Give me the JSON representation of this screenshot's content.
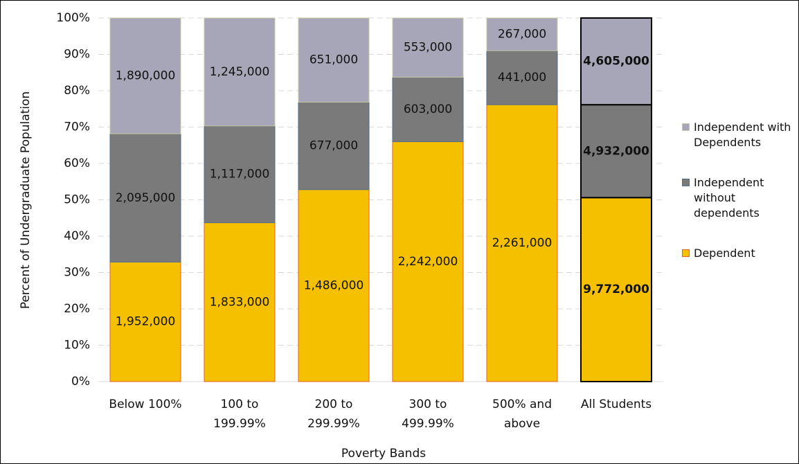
{
  "chart_data": {
    "type": "bar",
    "stacking": "percent",
    "x_label": "Poverty Bands",
    "y_label": "Percent of Undergraduate Population",
    "categories": [
      "Below 100%",
      "100 to\n199.99%",
      "200 to\n299.99%",
      "300 to\n499.99%",
      "500% and\nabove",
      "All Students"
    ],
    "series": [
      {
        "name": "Dependent",
        "color": "#f5c000",
        "edge": "#e0602a",
        "values": [
          1952000,
          1833000,
          1486000,
          2242000,
          2261000,
          9772000
        ],
        "value_labels": [
          "1,952,000",
          "1,833,000",
          "1,486,000",
          "2,242,000",
          "2,261,000",
          "9,772,000"
        ]
      },
      {
        "name": "Independent without dependents",
        "color": "#7a7a7a",
        "edge": "#4f6f8f",
        "values": [
          2095000,
          1117000,
          677000,
          603000,
          441000,
          4932000
        ],
        "value_labels": [
          "2,095,000",
          "1,117,000",
          "677,000",
          "603,000",
          "441,000",
          "4,932,000"
        ]
      },
      {
        "name": "Independent with Dependents",
        "color": "#a6a6b8",
        "edge": "#c9c9a4",
        "values": [
          1890000,
          1245000,
          651000,
          553000,
          267000,
          4605000
        ],
        "value_labels": [
          "1,890,000",
          "1,245,000",
          "651,000",
          "553,000",
          "267,000",
          "4,605,000"
        ]
      }
    ],
    "ylim": [
      0,
      100
    ],
    "yticks": [
      {
        "value": 0,
        "label": "0%"
      },
      {
        "value": 10,
        "label": "10%"
      },
      {
        "value": 20,
        "label": "20%"
      },
      {
        "value": 30,
        "label": "30%"
      },
      {
        "value": 40,
        "label": "40%"
      },
      {
        "value": 50,
        "label": "50%"
      },
      {
        "value": 60,
        "label": "60%"
      },
      {
        "value": 70,
        "label": "70%"
      },
      {
        "value": 80,
        "label": "80%"
      },
      {
        "value": 90,
        "label": "90%"
      },
      {
        "value": 100,
        "label": "100%"
      }
    ],
    "grid": true,
    "legend": "right"
  }
}
